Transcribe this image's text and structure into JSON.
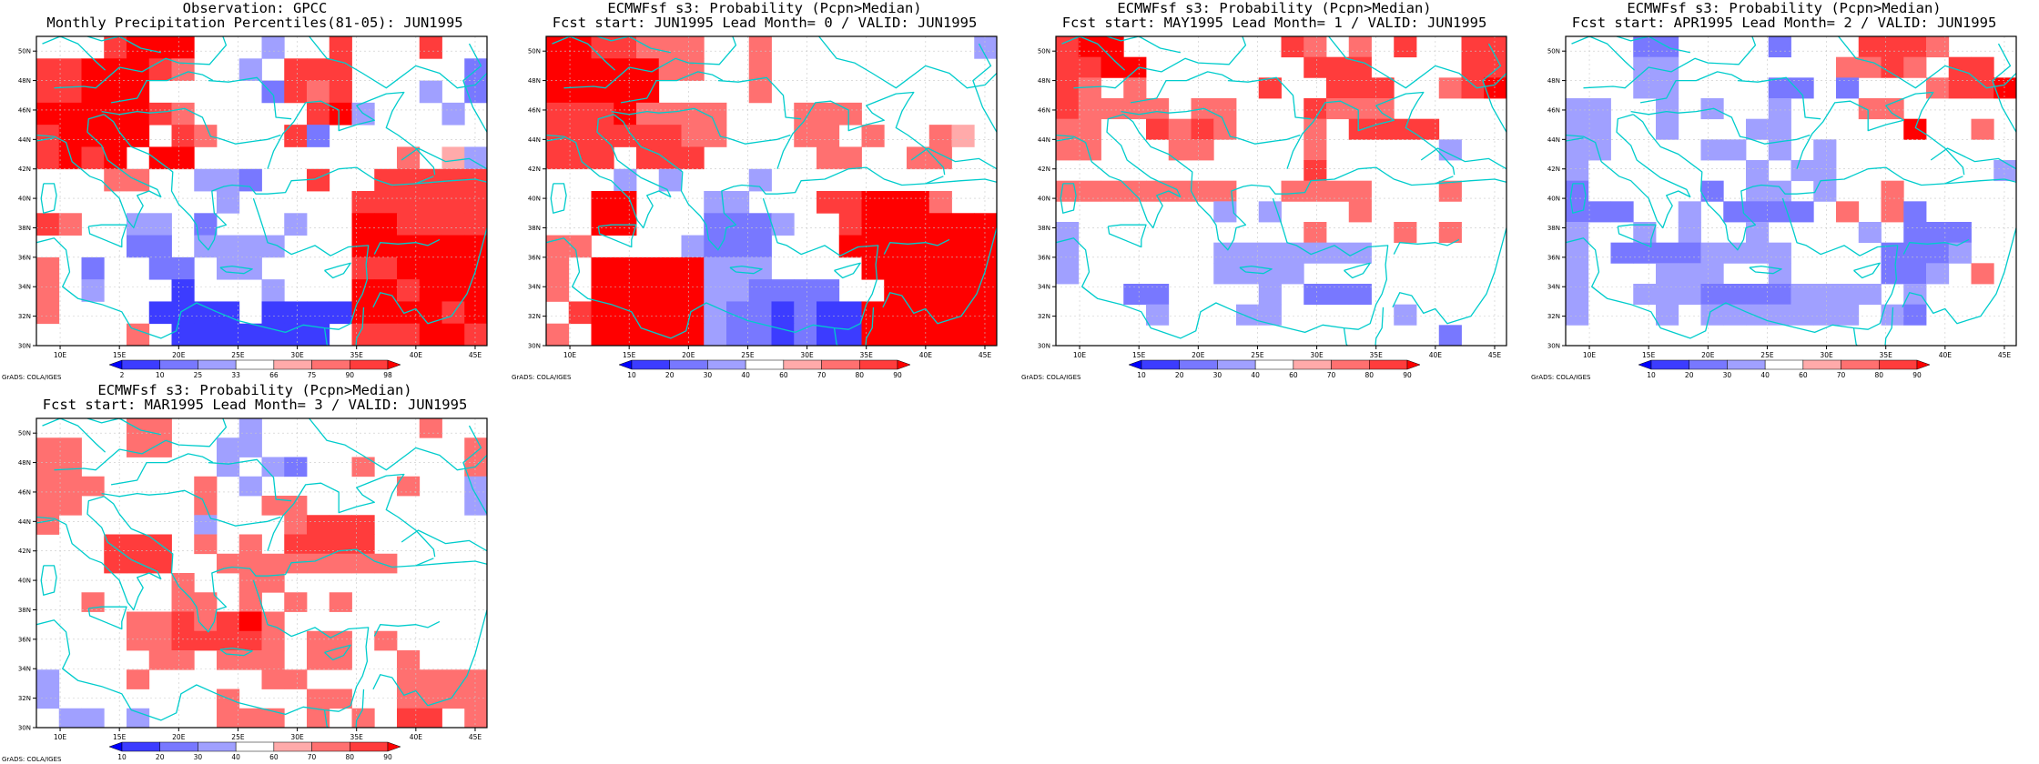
{
  "colors": {
    "land": "#ffffff",
    "coastline": "#00cccc",
    "grid": "#c8c8c8",
    "frame": "#000000"
  },
  "axes": {
    "lon_range": [
      8,
      46
    ],
    "lat_range": [
      30,
      51
    ],
    "lon_ticks": [
      "10E",
      "15E",
      "20E",
      "25E",
      "30E",
      "35E",
      "40E",
      "45E"
    ],
    "lat_ticks": [
      "30N",
      "32N",
      "34N",
      "36N",
      "38N",
      "40N",
      "42N",
      "44N",
      "46N",
      "48N",
      "50N"
    ]
  },
  "chart_data": [
    {
      "type": "heatmap",
      "title_line1": "Observation: GPCC",
      "title_line2": "Monthly Precipitation Percentiles(81-05): JUN1995",
      "credit": "GrADS: COLA/IGES",
      "colorbar": {
        "labels": [
          "2",
          "10",
          "25",
          "33",
          "66",
          "75",
          "90",
          "98"
        ],
        "colors": [
          "#0000ff",
          "#3c3cff",
          "#7878ff",
          "#a0a0ff",
          "#ffffff",
          "#ffaaaa",
          "#ff7070",
          "#ff3c3c",
          "#ff0000"
        ]
      },
      "cells": [
        "-..7888...3..7...7..",
        "7788876..3.777.....2",
        "77888.....2767...3.2",
        "8888876.....783...3.",
        "78888.76...72.......",
        "7878.88.........6.53",
        "...66..332..7..77777",
        "........3.....777777",
        "76..33.2...3..887777",
        "....22.3333...888888",
        "6.2..22.33....778888",
        "6.3...1...3...887888",
        "6....1111.1111888878",
        "....6.1111111.777887"
      ]
    },
    {
      "type": "heatmap",
      "title_line1": "ECMWFsf s3: Probability (Pcpn>Median)",
      "title_line2": "Fcst start: JUN1995  Lead Month= 0 / VALID: JUN1995",
      "credit": "GrADS: COLA/IGES",
      "colorbar": {
        "labels": [
          "10",
          "20",
          "30",
          "40",
          "60",
          "70",
          "80",
          "90"
        ],
        "colors": [
          "#0000ff",
          "#3c3cff",
          "#7878ff",
          "#a0a0ff",
          "#ffffff",
          "#ffaaaa",
          "#ff7070",
          "#ff3c3c",
          "#ff0000"
        ]
      },
      "cells": [
        "8877666..6.........3",
        "8888866..6..........",
        "88888....6..........",
        "77786666...666......",
        "77777766...66.6..65.",
        "777.777.....66..66..",
        "...3.3...3..........",
        "..88...33...778886..",
        "..88...2223..7888888",
        "66....3222...8888888",
        "6.88888333....888888",
        "6.88888332222..88888",
        ".7888883221211888888",
        "6.888883221211888888"
      ]
    },
    {
      "type": "heatmap",
      "title_line1": "ECMWFsf s3: Probability (Pcpn>Median)",
      "title_line2": "Fcst start: MAY1995  Lead Month= 1 / VALID: JUN1995",
      "credit": "GrADS: COLA/IGES",
      "colorbar": {
        "labels": [
          "10",
          "20",
          "30",
          "40",
          "60",
          "70",
          "80",
          "90"
        ],
        "colors": [
          "#0000ff",
          "#3c3cff",
          "#7878ff",
          "#a0a0ff",
          "#ffffff",
          "#ffaaaa",
          "#ff7070",
          "#ff3c3c",
          "#ff0000"
        ]
      },
      "cells": [
        "788.......76.6.7..77",
        "7788.......777....77",
        "76.6.....7..777..678",
        "76666.66...7666.....",
        "66..7676...6.7777...",
        "66...66....6.....3..",
        "...........7........",
        "66666666..6666...6..",
        ".......3.3...6......",
        "3..........6...6.6..",
        "3......3333333......",
        "3......3333.........",
        "...22....3.222......",
        "....3...33.....3....",
        ".................2.."
      ]
    },
    {
      "type": "heatmap",
      "title_line1": "ECMWFsf s3: Probability (Pcpn>Median)",
      "title_line2": "Fcst start: APR1995  Lead Month= 2 / VALID: JUN1995",
      "credit": "GrADS: COLA/IGES",
      "colorbar": {
        "labels": [
          "10",
          "20",
          "30",
          "40",
          "60",
          "70",
          "80",
          "90"
        ],
        "colors": [
          "#0000ff",
          "#3c3cff",
          "#7878ff",
          "#a0a0ff",
          "#ffffff",
          "#ffaaaa",
          "#ff7070",
          "#ff3c3c",
          "#ff0000"
        ]
      },
      "cells": [
        "...22....2...7776...",
        "...33.......6676.77.",
        "...33....22.2...6778",
        "33..3.3..3...66.....",
        "33..3...33.....8..6.",
        "33....33.3.3........",
        "3.......3.33.......3",
        "2.....2.33.3..6.....",
        "222..3.2222.6.62....",
        "3..3.3..3....3.222..",
        "3.22223333....2223..",
        "3...333..3....223.6.",
        "3..33322223333.3....",
        "3...3.3333333.32....",
        "...................."
      ]
    },
    {
      "type": "heatmap",
      "title_line1": "ECMWFsf s3: Probability (Pcpn>Median)",
      "title_line2": "Fcst start: MAR1995  Lead Month= 3 / VALID: JUN1995",
      "credit": "GrADS: COLA/IGES",
      "colorbar": {
        "labels": [
          "10",
          "20",
          "30",
          "40",
          "60",
          "70",
          "80",
          "90"
        ],
        "colors": [
          "#0000ff",
          "#3c3cff",
          "#7878ff",
          "#a0a0ff",
          "#ffffff",
          "#ffaaaa",
          "#ff7070",
          "#ff3c3c",
          "#ff0000"
        ]
      },
      "cells": [
        "....66...3.......6..",
        "66..66..33.........6",
        "66......3.32..6....6",
        "666....6.3......6..3",
        "66.....6..66.......3",
        "6......3...6777.....",
        "...777.6.6.7777.....",
        "...777..66666666....",
        "......6..66.........",
        "..6...66.6.6.6......",
        "....6676786.........",
        "....6677776.66.6....",
        ".....66.666.66..6...",
        "3...6.....66....6666",
        "3.......6...66..6666",
        ".33.3...666.6.6.77.6"
      ]
    }
  ]
}
